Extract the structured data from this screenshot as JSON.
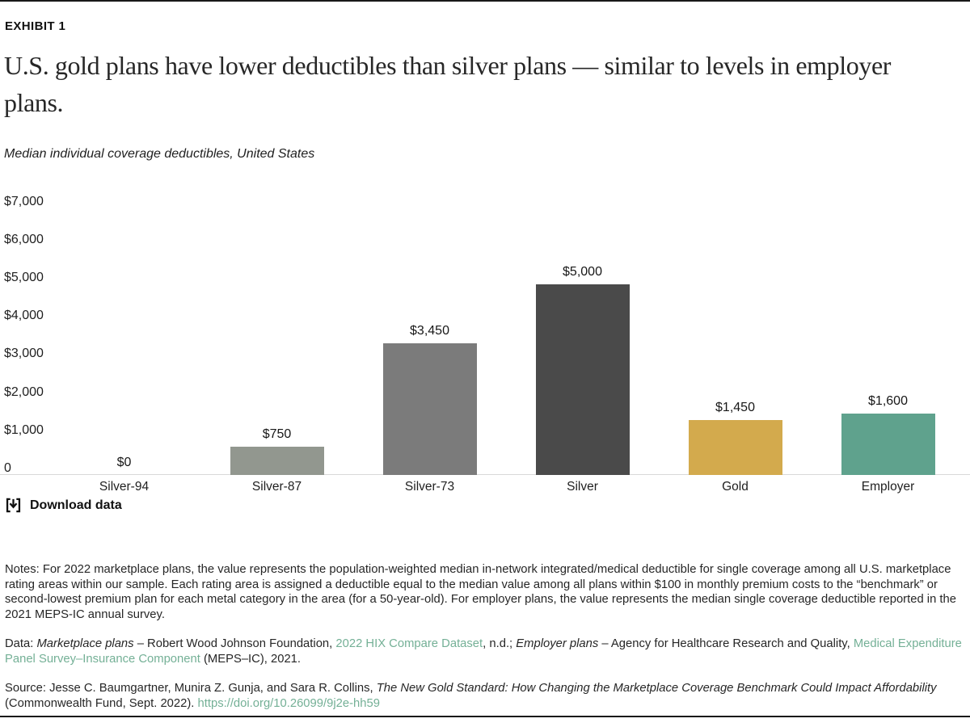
{
  "header": {
    "exhibit": "EXHIBIT 1",
    "title": "U.S. gold plans have lower deductibles than silver plans — similar to levels in employer plans.",
    "subtitle": "Median individual coverage deductibles, United States"
  },
  "chart_data": {
    "type": "bar",
    "title": "Median individual coverage deductibles, United States",
    "categories": [
      "Silver-94",
      "Silver-87",
      "Silver-73",
      "Silver",
      "Gold",
      "Employer"
    ],
    "values": [
      0,
      750,
      3450,
      5000,
      1450,
      1600
    ],
    "value_labels": [
      "$0",
      "$750",
      "$3,450",
      "$5,000",
      "$1,450",
      "$1,600"
    ],
    "bar_colors": [
      null,
      "#92978f",
      "#7b7b7b",
      "#4a4a4a",
      "#d3aa4d",
      "#5fa28d"
    ],
    "y_ticks": [
      {
        "label": "$7,000",
        "value": 7000
      },
      {
        "label": "$6,000",
        "value": 6000
      },
      {
        "label": "$5,000",
        "value": 5000
      },
      {
        "label": "$4,000",
        "value": 4000
      },
      {
        "label": "$3,000",
        "value": 3000
      },
      {
        "label": "$2,000",
        "value": 2000
      },
      {
        "label": "$1,000",
        "value": 1000
      },
      {
        "label": "0",
        "value": 0
      }
    ],
    "xlabel": "",
    "ylabel": "",
    "ylim": [
      0,
      7000
    ],
    "grid": false,
    "legend": false,
    "axis_line_color": "#d8d8d8"
  },
  "download": {
    "label": "Download data"
  },
  "notes": "Notes: For 2022 marketplace plans, the value represents the population-weighted median in-network integrated/medical deductible for single coverage among all U.S. marketplace rating areas within our sample. Each rating area is assigned a deductible equal to the median value among all plans within $100 in monthly premium costs to the “benchmark” or second-lowest premium plan for each metal category in the area (for a 50-year-old). For employer plans, the value represents the median single coverage deductible reported in the 2021 MEPS-IC annual survey.",
  "data_line": {
    "segments": [
      {
        "t": "Data: ",
        "s": "plain"
      },
      {
        "t": "Marketplace plans",
        "s": "italic"
      },
      {
        "t": " – Robert Wood Johnson Foundation, ",
        "s": "plain"
      },
      {
        "t": "2022 HIX Compare Dataset",
        "s": "link"
      },
      {
        "t": ", n.d.; ",
        "s": "plain"
      },
      {
        "t": "Employer plans",
        "s": "italic"
      },
      {
        "t": " – Agency for Healthcare Research and Quality, ",
        "s": "plain"
      },
      {
        "t": "Medical Expenditure Panel Survey–Insurance Component",
        "s": "link"
      },
      {
        "t": " (MEPS–IC), 2021.",
        "s": "plain"
      }
    ]
  },
  "source_line": {
    "segments": [
      {
        "t": "Source: Jesse C. Baumgartner, Munira Z. Gunja, and Sara R. Collins, ",
        "s": "plain"
      },
      {
        "t": "The New Gold Standard: How Changing the Marketplace Coverage Benchmark Could Impact Affordability",
        "s": "italic"
      },
      {
        "t": " (Commonwealth Fund, Sept. 2022). ",
        "s": "plain"
      },
      {
        "t": "https://doi.org/10.26099/9j2e-hh59",
        "s": "link"
      }
    ]
  }
}
